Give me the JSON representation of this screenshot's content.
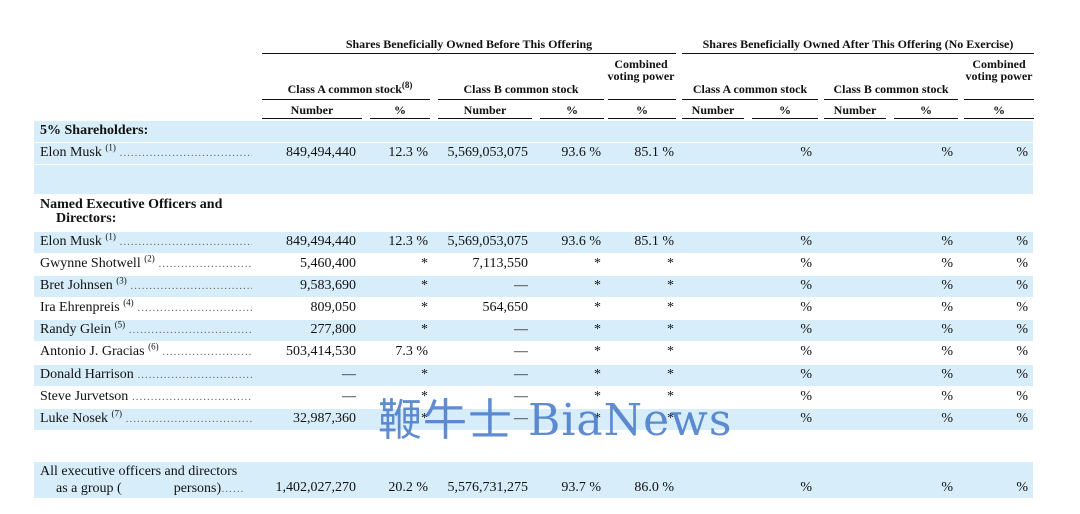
{
  "headers": {
    "before_title": "Shares Beneficially Owned Before This Offering",
    "after_title": "Shares Beneficially Owned After This Offering (No Exercise)",
    "class_a_before": "Class A common stock",
    "class_a_before_note": "(8)",
    "class_b_before": "Class B common stock",
    "combined_before": "Combined voting power",
    "class_a_after": "Class A common stock",
    "class_b_after": "Class B common stock",
    "combined_after": "Combined voting power",
    "number": "Number",
    "percent": "%"
  },
  "sections": {
    "five_percent": "5% Shareholders:",
    "named_line1": "Named Executive Officers and",
    "named_line2": "Directors:"
  },
  "rows": [
    {
      "name": "Elon Musk",
      "note": "(1)",
      "a_num": "849,494,440",
      "a_pct": "12.3 %",
      "b_num": "5,569,053,075",
      "b_pct": "93.6 %",
      "comb": "85.1 %",
      "aa_pct": "%",
      "ba_pct": "%",
      "comb_after": "%"
    },
    {
      "name": "Elon Musk",
      "note": "(1)",
      "a_num": "849,494,440",
      "a_pct": "12.3 %",
      "b_num": "5,569,053,075",
      "b_pct": "93.6 %",
      "comb": "85.1 %",
      "aa_pct": "%",
      "ba_pct": "%",
      "comb_after": "%"
    },
    {
      "name": "Gwynne Shotwell",
      "note": "(2)",
      "a_num": "5,460,400",
      "a_pct": "*",
      "b_num": "7,113,550",
      "b_pct": "*",
      "comb": "*",
      "aa_pct": "%",
      "ba_pct": "%",
      "comb_after": "%"
    },
    {
      "name": "Bret Johnsen",
      "note": "(3)",
      "a_num": "9,583,690",
      "a_pct": "*",
      "b_num": "—",
      "b_pct": "*",
      "comb": "*",
      "aa_pct": "%",
      "ba_pct": "%",
      "comb_after": "%"
    },
    {
      "name": "Ira Ehrenpreis",
      "note": "(4)",
      "a_num": "809,050",
      "a_pct": "*",
      "b_num": "564,650",
      "b_pct": "*",
      "comb": "*",
      "aa_pct": "%",
      "ba_pct": "%",
      "comb_after": "%"
    },
    {
      "name": "Randy Glein",
      "note": "(5)",
      "a_num": "277,800",
      "a_pct": "*",
      "b_num": "—",
      "b_pct": "*",
      "comb": "*",
      "aa_pct": "%",
      "ba_pct": "%",
      "comb_after": "%"
    },
    {
      "name": "Antonio J. Gracias",
      "note": "(6)",
      "a_num": "503,414,530",
      "a_pct": "7.3 %",
      "b_num": "—",
      "b_pct": "*",
      "comb": "*",
      "aa_pct": "%",
      "ba_pct": "%",
      "comb_after": "%"
    },
    {
      "name": "Donald Harrison",
      "note": "",
      "a_num": "—",
      "a_pct": "*",
      "b_num": "—",
      "b_pct": "*",
      "comb": "*",
      "aa_pct": "%",
      "ba_pct": "%",
      "comb_after": "%"
    },
    {
      "name": "Steve Jurvetson",
      "note": "",
      "a_num": "—",
      "a_pct": "*",
      "b_num": "—",
      "b_pct": "*",
      "comb": "*",
      "aa_pct": "%",
      "ba_pct": "%",
      "comb_after": "%"
    },
    {
      "name": "Luke Nosek",
      "note": "(7)",
      "a_num": "32,987,360",
      "a_pct": "*",
      "b_num": "—",
      "b_pct": "*",
      "comb": "*",
      "aa_pct": "%",
      "ba_pct": "%",
      "comb_after": "%"
    }
  ],
  "group": {
    "line1": "All executive officers and directors",
    "line2_a": "as a group (",
    "line2_b": "persons)",
    "a_num": "1,402,027,270",
    "a_pct": "20.2 %",
    "b_num": "5,576,731,275",
    "b_pct": "93.7 %",
    "comb": "86.0 %",
    "aa_pct": "%",
    "ba_pct": "%",
    "comb_after": "%"
  },
  "watermark": "鞭牛士 BiaNews",
  "colors": {
    "band": "#d7eefa",
    "watermark": "#3f74c7"
  }
}
